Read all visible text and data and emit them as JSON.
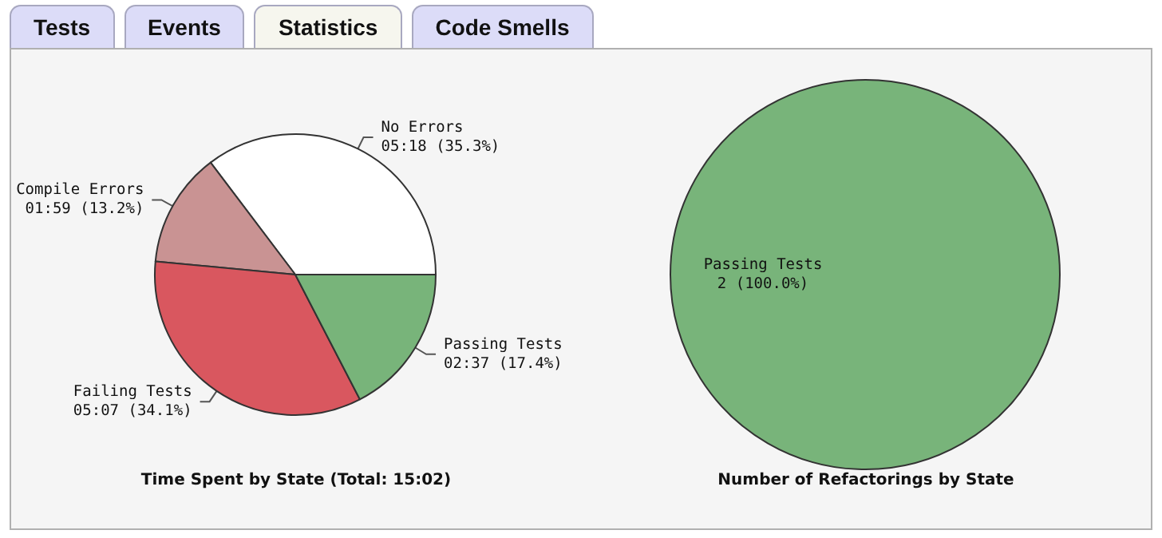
{
  "chart_data": [
    {
      "type": "pie",
      "title": "Time Spent by State (Total: 15:02)",
      "annotations": [
        "Tests",
        "Events",
        "Statistics",
        "Code Smells"
      ],
      "categories": [
        "No Errors",
        "Compile Errors",
        "Failing Tests",
        "Passing Tests"
      ],
      "values": [
        35.3,
        13.2,
        34.1,
        17.4
      ],
      "value_labels": [
        "05:18 (35.3%)",
        "01:59 (13.2%)",
        "05:07 (34.1%)",
        "02:37 (17.4%)"
      ],
      "colors": [
        "#ffffff",
        "#c99393",
        "#d9575f",
        "#78b47a"
      ]
    },
    {
      "type": "pie",
      "title": "Number of Refactorings by State",
      "categories": [
        "Passing Tests"
      ],
      "values": [
        2
      ],
      "value_labels": [
        "2 (100.0%)"
      ],
      "colors": [
        "#78b47a"
      ]
    }
  ]
}
